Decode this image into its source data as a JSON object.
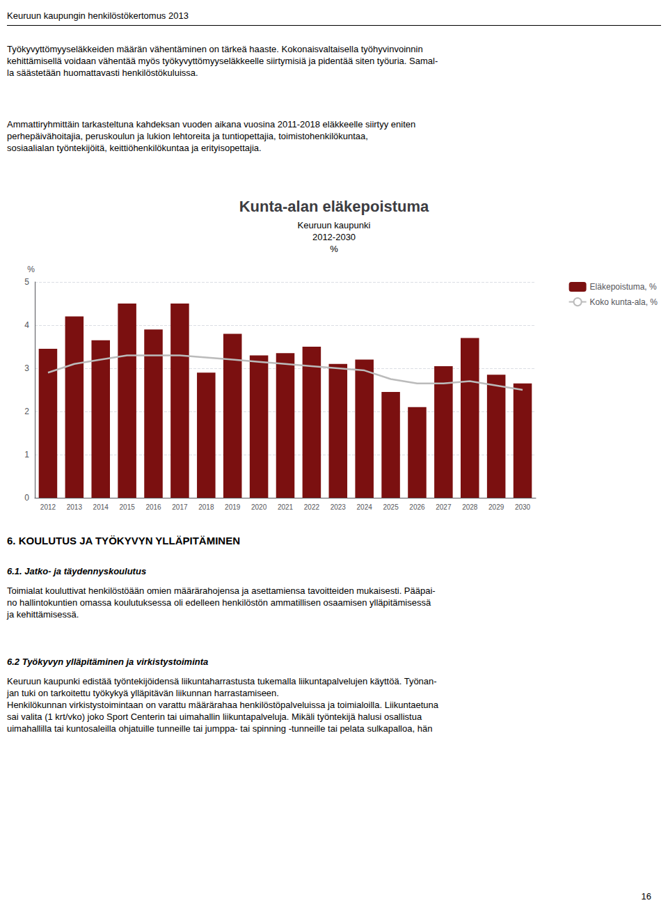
{
  "chart_data": {
    "type": "bar",
    "title": "Kunta-alan eläkepoistuma",
    "subtitle": [
      "Keuruun kaupunki",
      "2012-2030",
      "%"
    ],
    "ylabel": "%",
    "categories": [
      "2012",
      "2013",
      "2014",
      "2015",
      "2016",
      "2017",
      "2018",
      "2019",
      "2020",
      "2021",
      "2022",
      "2023",
      "2024",
      "2025",
      "2026",
      "2027",
      "2028",
      "2029",
      "2030"
    ],
    "series": [
      {
        "name": "Eläkepoistuma, %",
        "type": "bar",
        "color": "#7B1010",
        "values": [
          3.45,
          4.2,
          3.65,
          4.5,
          3.9,
          4.5,
          2.9,
          3.8,
          3.3,
          3.35,
          3.5,
          3.1,
          3.2,
          2.45,
          2.1,
          3.05,
          3.7,
          2.85,
          2.65
        ]
      },
      {
        "name": "Koko kunta-ala, %",
        "type": "line",
        "color": "#BBBBBB",
        "values": [
          2.9,
          3.1,
          3.2,
          3.3,
          3.3,
          3.3,
          3.25,
          3.2,
          3.15,
          3.1,
          3.05,
          3.0,
          2.95,
          2.75,
          2.65,
          2.65,
          2.7,
          2.6,
          2.5
        ]
      }
    ],
    "ylim": [
      0,
      5
    ],
    "yticks": [
      0,
      1,
      2,
      3,
      4,
      5
    ],
    "grid": true,
    "legend": "right",
    "annotations": [
      "Keuruun kaupungin henkilöstökertomus 2013",
      "Työkyvyttömyyseläkkeiden määrän vähentäminen on tärkeä haaste. Kokonaisvaltaisella työhyvinvoinnin\nkehittämisellä voidaan vähentää myös työkyvyttömyyseläkkeelle siirtymisiä ja pidentää siten työuria. Samal-\nla säästetään huomattavasti henkilöstökuluissa.",
      "Ammattiryhmittäin tarkasteltuna kahdeksan vuoden aikana vuosina 2011-2018 eläkkeelle siirtyy eniten\nperhepäivähoitajia, peruskoulun ja lukion lehtoreita ja tuntiopettajia, toimistohenkilökuntaa,\nsosiaalialan työntekijöitä, keittiöhenkilökuntaa ja erityisopettajia.",
      "6. KOULUTUS JA TYÖKYVYN YLLÄPITÄMINEN",
      "6.1. Jatko- ja täydennyskoulutus",
      "Toimialat kouluttivat henkilöstöään omien määrärahojensa ja asettamiensa tavoitteiden mukaisesti. Pääpai-\nno hallintokuntien omassa koulutuksessa oli edelleen henkilöstön ammatillisen osaamisen ylläpitämisessä\nja kehittämisessä.",
      "6.2 Työkyvyn ylläpitäminen ja virkistystoiminta",
      "Keuruun kaupunki edistää työntekijöidensä liikuntaharrastusta tukemalla liikuntapalvelujen käyttöä. Työnan-\njan tuki on tarkoitettu työkykyä ylläpitävän liikunnan harrastamiseen.\nHenkilökunnan virkistystoimintaan on varattu määrärahaa henkilöstöpalveluissa ja toimialoilla. Liikuntaetuna\nsai valita (1 krt/vko) joko Sport Centerin tai uimahallin liikuntapalveluja. Mikäli työntekijä halusi osallistua\nuimahallilla tai kuntosaleilla ohjatuille tunneille tai jumppa- tai spinning -tunneille tai pelata sulkapalloa, hän",
      "16"
    ]
  }
}
